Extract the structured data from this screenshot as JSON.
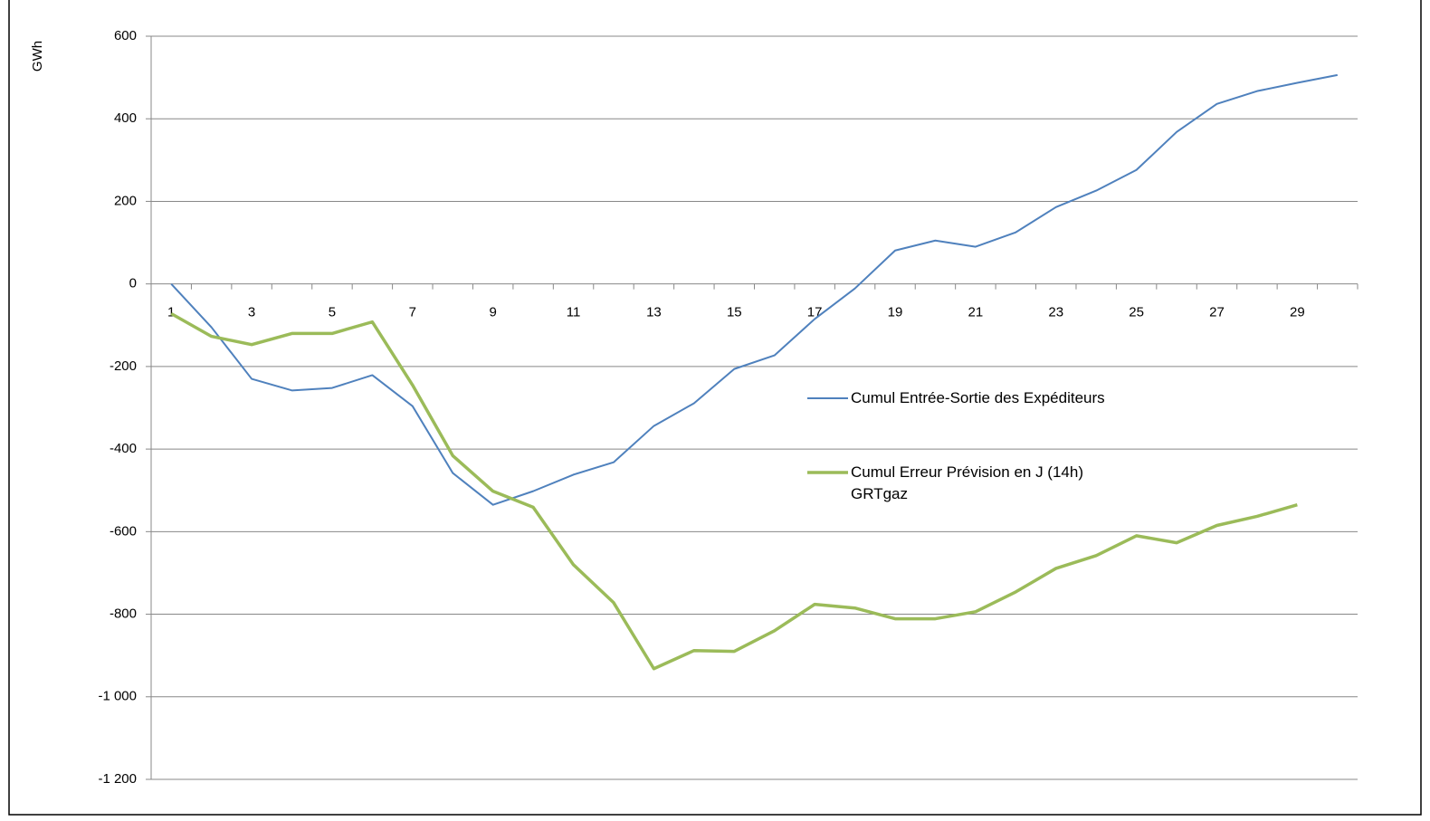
{
  "chart_data": {
    "type": "line",
    "y_label": "GWh",
    "categories": [
      "1",
      null,
      "3",
      null,
      "5",
      null,
      "7",
      null,
      "9",
      null,
      "11",
      null,
      "13",
      null,
      "15",
      null,
      "17",
      null,
      "19",
      null,
      "21",
      null,
      "23",
      null,
      "25",
      null,
      "27",
      null,
      "29",
      null
    ],
    "series": [
      {
        "name": "Cumul Entrée-Sortie des Expéditeurs",
        "color": "#4f81bd",
        "width": 2,
        "values": [
          0,
          -105,
          -230,
          -258,
          -252,
          -221,
          -296,
          -458,
          -535,
          -502,
          -462,
          -432,
          -344,
          -289,
          -206,
          -173,
          -85,
          -11,
          81,
          105,
          90,
          125,
          186,
          226,
          276,
          368,
          436,
          467,
          487,
          506
        ]
      },
      {
        "name": "Cumul Erreur Prévision en J (14h) GRTgaz",
        "color": "#9bbb59",
        "width": 3.5,
        "values": [
          -72,
          -127,
          -147,
          -120,
          -120,
          -92,
          -245,
          -416,
          -502,
          -541,
          -680,
          -772,
          -932,
          -888,
          -890,
          -840,
          -776,
          -785,
          -811,
          -811,
          -794,
          -746,
          -689,
          -658,
          -610,
          -627,
          -585,
          -563,
          -535,
          null
        ]
      }
    ],
    "ylim": [
      -1200,
      600
    ],
    "yticks": [
      600,
      400,
      200,
      0,
      -200,
      -400,
      -600,
      -800,
      {
        "value": -1000,
        "label": "-1 000"
      },
      {
        "value": -1200,
        "label": "-1 200"
      }
    ],
    "grid": true
  }
}
